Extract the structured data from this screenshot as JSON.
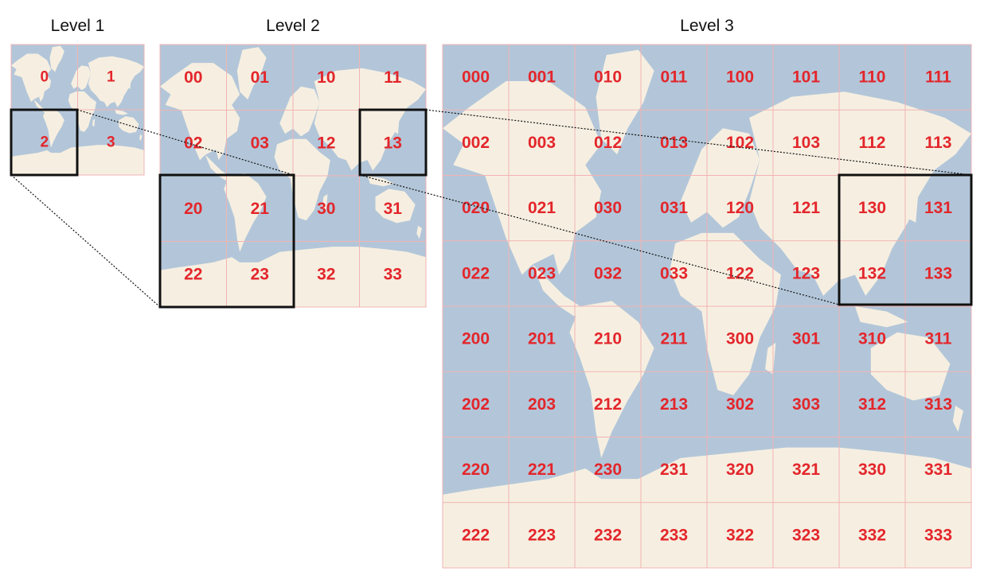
{
  "colors": {
    "ocean": "#b3c6d9",
    "land": "#f6efe1",
    "label": "#e3262b",
    "grid": "#f2b3b3",
    "highlight": "#111111"
  },
  "levels": [
    {
      "title": "Level 1",
      "digits": 1
    },
    {
      "title": "Level 2",
      "digits": 2
    },
    {
      "title": "Level 3",
      "digits": 3
    }
  ],
  "highlights": [
    {
      "level": 1,
      "tile": "2",
      "zooms_to": "Level 2 tiles 20, 21, 22, 23"
    },
    {
      "level": 2,
      "tile": "13",
      "zooms_to": "Level 3 tiles 130, 131, 132, 133"
    }
  ]
}
